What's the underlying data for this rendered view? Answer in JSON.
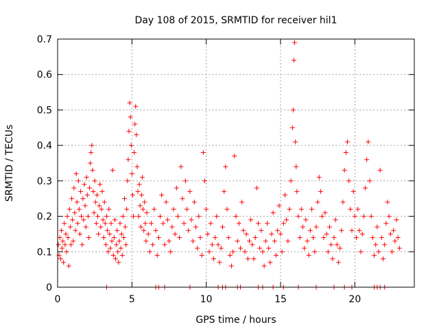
{
  "chart_data": {
    "type": "scatter",
    "title": "Day 108 of 2015, SRMTID for receiver hil1",
    "xlabel": "GPS time / hours",
    "ylabel": "SRMTID / TECUs",
    "xlim": [
      0,
      24
    ],
    "ylim": [
      0,
      0.7
    ],
    "xticks": [
      0,
      5,
      10,
      15,
      20
    ],
    "xtick_labels": [
      "0",
      "5",
      "10",
      "15",
      "20"
    ],
    "yticks": [
      0,
      0.1,
      0.2,
      0.3,
      0.4,
      0.5,
      0.6,
      0.7
    ],
    "ytick_labels": [
      "0",
      "0.1",
      "0.2",
      "0.3",
      "0.4",
      "0.5",
      "0.6",
      "0.7"
    ],
    "grid": true,
    "marker": "+",
    "color": "#ff0000",
    "series": [
      {
        "name": "hil1",
        "points": [
          [
            0.05,
            0.12
          ],
          [
            0.1,
            0.09
          ],
          [
            0.15,
            0.14
          ],
          [
            0.2,
            0.08
          ],
          [
            0.25,
            0.16
          ],
          [
            0.3,
            0.11
          ],
          [
            0.35,
            0.13
          ],
          [
            0.4,
            0.07
          ],
          [
            0.45,
            0.18
          ],
          [
            0.5,
            0.12
          ],
          [
            0.55,
            0.15
          ],
          [
            0.6,
            0.1
          ],
          [
            0.65,
            0.2
          ],
          [
            0.7,
            0.14
          ],
          [
            0.75,
            0.06
          ],
          [
            0.8,
            0.22
          ],
          [
            0.85,
            0.17
          ],
          [
            0.9,
            0.12
          ],
          [
            0.95,
            0.25
          ],
          [
            1.0,
            0.19
          ],
          [
            1.05,
            0.13
          ],
          [
            1.1,
            0.28
          ],
          [
            1.15,
            0.21
          ],
          [
            1.2,
            0.16
          ],
          [
            1.25,
            0.32
          ],
          [
            1.3,
            0.24
          ],
          [
            1.35,
            0.18
          ],
          [
            1.4,
            0.3
          ],
          [
            1.45,
            0.22
          ],
          [
            1.5,
            0.15
          ],
          [
            1.55,
            0.27
          ],
          [
            1.6,
            0.2
          ],
          [
            1.65,
            0.12
          ],
          [
            1.7,
            0.25
          ],
          [
            1.75,
            0.19
          ],
          [
            1.8,
            0.29
          ],
          [
            1.85,
            0.23
          ],
          [
            1.9,
            0.17
          ],
          [
            1.95,
            0.31
          ],
          [
            2.0,
            0.26
          ],
          [
            2.05,
            0.2
          ],
          [
            2.1,
            0.14
          ],
          [
            2.15,
            0.28
          ],
          [
            2.2,
            0.35
          ],
          [
            2.25,
            0.38
          ],
          [
            2.3,
            0.4
          ],
          [
            2.35,
            0.33
          ],
          [
            2.4,
            0.27
          ],
          [
            2.45,
            0.21
          ],
          [
            2.5,
            0.3
          ],
          [
            2.55,
            0.24
          ],
          [
            2.6,
            0.18
          ],
          [
            2.65,
            0.26
          ],
          [
            2.7,
            0.2
          ],
          [
            2.75,
            0.15
          ],
          [
            2.8,
            0.23
          ],
          [
            2.85,
            0.29
          ],
          [
            2.9,
            0.17
          ],
          [
            2.95,
            0.22
          ],
          [
            3.0,
            0.27
          ],
          [
            3.05,
            0.19
          ],
          [
            3.1,
            0.14
          ],
          [
            3.15,
            0.24
          ],
          [
            3.2,
            0.18
          ],
          [
            3.25,
            0.12
          ],
          [
            3.3,
            0.2
          ],
          [
            3.35,
            0.16
          ],
          [
            3.4,
            0.1
          ],
          [
            3.45,
            0.22
          ],
          [
            3.5,
            0.15
          ],
          [
            3.55,
            0.11
          ],
          [
            3.6,
            0.18
          ],
          [
            3.65,
            0.13
          ],
          [
            3.7,
            0.33
          ],
          [
            3.75,
            0.09
          ],
          [
            3.8,
            0.14
          ],
          [
            3.85,
            0.19
          ],
          [
            3.9,
            0.08
          ],
          [
            3.95,
            0.12
          ],
          [
            4.0,
            0.16
          ],
          [
            4.05,
            0.1
          ],
          [
            4.1,
            0.07
          ],
          [
            4.15,
            0.13
          ],
          [
            4.2,
            0.18
          ],
          [
            4.25,
            0.11
          ],
          [
            4.3,
            0.15
          ],
          [
            4.35,
            0.09
          ],
          [
            4.4,
            0.2
          ],
          [
            4.45,
            0.14
          ],
          [
            4.5,
            0.25
          ],
          [
            4.55,
            0.17
          ],
          [
            4.6,
            0.12
          ],
          [
            4.65,
            0.22
          ],
          [
            4.7,
            0.3
          ],
          [
            4.75,
            0.36
          ],
          [
            4.8,
            0.44
          ],
          [
            4.85,
            0.52
          ],
          [
            4.9,
            0.48
          ],
          [
            4.95,
            0.4
          ],
          [
            5.0,
            0.32
          ],
          [
            5.05,
            0.26
          ],
          [
            5.1,
            0.2
          ],
          [
            5.15,
            0.38
          ],
          [
            5.2,
            0.46
          ],
          [
            5.25,
            0.51
          ],
          [
            5.3,
            0.43
          ],
          [
            5.35,
            0.34
          ],
          [
            5.4,
            0.27
          ],
          [
            5.45,
            0.2
          ],
          [
            5.5,
            0.29
          ],
          [
            5.55,
            0.23
          ],
          [
            5.6,
            0.17
          ],
          [
            5.65,
            0.26
          ],
          [
            5.7,
            0.31
          ],
          [
            5.75,
            0.22
          ],
          [
            5.8,
            0.16
          ],
          [
            5.85,
            0.24
          ],
          [
            5.9,
            0.18
          ],
          [
            5.95,
            0.13
          ],
          [
            6.0,
            0.21
          ],
          [
            6.1,
            0.15
          ],
          [
            6.2,
            0.1
          ],
          [
            6.3,
            0.18
          ],
          [
            6.4,
            0.12
          ],
          [
            6.5,
            0.22
          ],
          [
            6.6,
            0.16
          ],
          [
            6.7,
            0.09
          ],
          [
            6.8,
            0.14
          ],
          [
            6.9,
            0.2
          ],
          [
            7.0,
            0.26
          ],
          [
            7.1,
            0.18
          ],
          [
            7.2,
            0.12
          ],
          [
            7.3,
            0.24
          ],
          [
            7.4,
            0.19
          ],
          [
            7.5,
            0.13
          ],
          [
            7.6,
            0.1
          ],
          [
            7.7,
            0.17
          ],
          [
            7.8,
            0.22
          ],
          [
            7.9,
            0.15
          ],
          [
            8.0,
            0.28
          ],
          [
            8.1,
            0.2
          ],
          [
            8.2,
            0.14
          ],
          [
            8.3,
            0.34
          ],
          [
            8.4,
            0.25
          ],
          [
            8.5,
            0.18
          ],
          [
            8.6,
            0.3
          ],
          [
            8.7,
            0.22
          ],
          [
            8.8,
            0.16
          ],
          [
            8.9,
            0.27
          ],
          [
            9.0,
            0.19
          ],
          [
            9.1,
            0.13
          ],
          [
            9.2,
            0.24
          ],
          [
            9.3,
            0.17
          ],
          [
            9.4,
            0.11
          ],
          [
            9.5,
            0.2
          ],
          [
            9.6,
            0.14
          ],
          [
            9.7,
            0.09
          ],
          [
            9.8,
            0.38
          ],
          [
            9.9,
            0.3
          ],
          [
            10.0,
            0.22
          ],
          [
            10.1,
            0.15
          ],
          [
            10.2,
            0.1
          ],
          [
            10.3,
            0.18
          ],
          [
            10.4,
            0.12
          ],
          [
            10.5,
            0.08
          ],
          [
            10.6,
            0.14
          ],
          [
            10.7,
            0.2
          ],
          [
            10.8,
            0.12
          ],
          [
            10.9,
            0.07
          ],
          [
            11.0,
            0.11
          ],
          [
            11.1,
            0.17
          ],
          [
            11.2,
            0.27
          ],
          [
            11.3,
            0.34
          ],
          [
            11.4,
            0.22
          ],
          [
            11.5,
            0.14
          ],
          [
            11.6,
            0.09
          ],
          [
            11.7,
            0.06
          ],
          [
            11.8,
            0.1
          ],
          [
            11.9,
            0.37
          ],
          [
            12.0,
            0.2
          ],
          [
            12.1,
            0.13
          ],
          [
            12.2,
            0.18
          ],
          [
            12.3,
            0.11
          ],
          [
            12.4,
            0.24
          ],
          [
            12.5,
            0.16
          ],
          [
            12.6,
            0.1
          ],
          [
            12.7,
            0.15
          ],
          [
            12.8,
            0.08
          ],
          [
            12.9,
            0.13
          ],
          [
            13.0,
            0.19
          ],
          [
            13.1,
            0.12
          ],
          [
            13.2,
            0.08
          ],
          [
            13.3,
            0.14
          ],
          [
            13.4,
            0.28
          ],
          [
            13.5,
            0.18
          ],
          [
            13.6,
            0.11
          ],
          [
            13.7,
            0.16
          ],
          [
            13.8,
            0.1
          ],
          [
            13.9,
            0.06
          ],
          [
            14.0,
            0.13
          ],
          [
            14.1,
            0.18
          ],
          [
            14.2,
            0.11
          ],
          [
            14.3,
            0.07
          ],
          [
            14.4,
            0.15
          ],
          [
            14.5,
            0.21
          ],
          [
            14.6,
            0.13
          ],
          [
            14.7,
            0.09
          ],
          [
            14.8,
            0.16
          ],
          [
            14.9,
            0.23
          ],
          [
            15.0,
            0.15
          ],
          [
            15.1,
            0.1
          ],
          [
            15.2,
            0.18
          ],
          [
            15.3,
            0.26
          ],
          [
            15.4,
            0.19
          ],
          [
            15.5,
            0.13
          ],
          [
            15.6,
            0.22
          ],
          [
            15.7,
            0.3
          ],
          [
            15.8,
            0.45
          ],
          [
            15.85,
            0.5
          ],
          [
            15.9,
            0.64
          ],
          [
            15.95,
            0.69
          ],
          [
            16.0,
            0.41
          ],
          [
            16.05,
            0.34
          ],
          [
            16.1,
            0.27
          ],
          [
            16.2,
            0.2
          ],
          [
            16.3,
            0.14
          ],
          [
            16.4,
            0.22
          ],
          [
            16.5,
            0.17
          ],
          [
            16.6,
            0.11
          ],
          [
            16.7,
            0.19
          ],
          [
            16.8,
            0.13
          ],
          [
            16.9,
            0.09
          ],
          [
            17.0,
            0.16
          ],
          [
            17.1,
            0.22
          ],
          [
            17.2,
            0.14
          ],
          [
            17.3,
            0.1
          ],
          [
            17.4,
            0.17
          ],
          [
            17.5,
            0.24
          ],
          [
            17.6,
            0.31
          ],
          [
            17.7,
            0.27
          ],
          [
            17.8,
            0.2
          ],
          [
            17.9,
            0.14
          ],
          [
            18.0,
            0.21
          ],
          [
            18.1,
            0.15
          ],
          [
            18.2,
            0.1
          ],
          [
            18.3,
            0.17
          ],
          [
            18.4,
            0.12
          ],
          [
            18.5,
            0.08
          ],
          [
            18.6,
            0.14
          ],
          [
            18.7,
            0.19
          ],
          [
            18.8,
            0.12
          ],
          [
            18.9,
            0.07
          ],
          [
            19.0,
            0.11
          ],
          [
            19.1,
            0.16
          ],
          [
            19.2,
            0.24
          ],
          [
            19.3,
            0.33
          ],
          [
            19.4,
            0.38
          ],
          [
            19.5,
            0.41
          ],
          [
            19.6,
            0.3
          ],
          [
            19.7,
            0.22
          ],
          [
            19.8,
            0.16
          ],
          [
            19.9,
            0.27
          ],
          [
            20.0,
            0.2
          ],
          [
            20.1,
            0.14
          ],
          [
            20.2,
            0.22
          ],
          [
            20.3,
            0.16
          ],
          [
            20.4,
            0.1
          ],
          [
            20.5,
            0.15
          ],
          [
            20.6,
            0.2
          ],
          [
            20.7,
            0.28
          ],
          [
            20.8,
            0.36
          ],
          [
            20.9,
            0.41
          ],
          [
            21.0,
            0.3
          ],
          [
            21.1,
            0.2
          ],
          [
            21.2,
            0.14
          ],
          [
            21.3,
            0.09
          ],
          [
            21.4,
            0.12
          ],
          [
            21.5,
            0.17
          ],
          [
            21.6,
            0.1
          ],
          [
            21.7,
            0.33
          ],
          [
            21.8,
            0.14
          ],
          [
            21.9,
            0.08
          ],
          [
            22.0,
            0.12
          ],
          [
            22.1,
            0.18
          ],
          [
            22.2,
            0.24
          ],
          [
            22.3,
            0.2
          ],
          [
            22.4,
            0.15
          ],
          [
            22.5,
            0.1
          ],
          [
            22.6,
            0.16
          ],
          [
            22.7,
            0.13
          ],
          [
            22.8,
            0.19
          ],
          [
            22.9,
            0.14
          ],
          [
            23.0,
            0.11
          ]
        ]
      }
    ],
    "gaps_axis_marks": [
      3.3,
      6.6,
      6.8,
      7.2,
      8.9,
      10.8,
      11.1,
      11.3,
      12.1,
      12.3,
      13.5,
      13.8,
      14.5,
      15.2,
      16.2,
      17.4,
      18.6,
      19.3,
      19.8,
      21.3,
      21.5,
      21.7,
      22.0
    ]
  }
}
